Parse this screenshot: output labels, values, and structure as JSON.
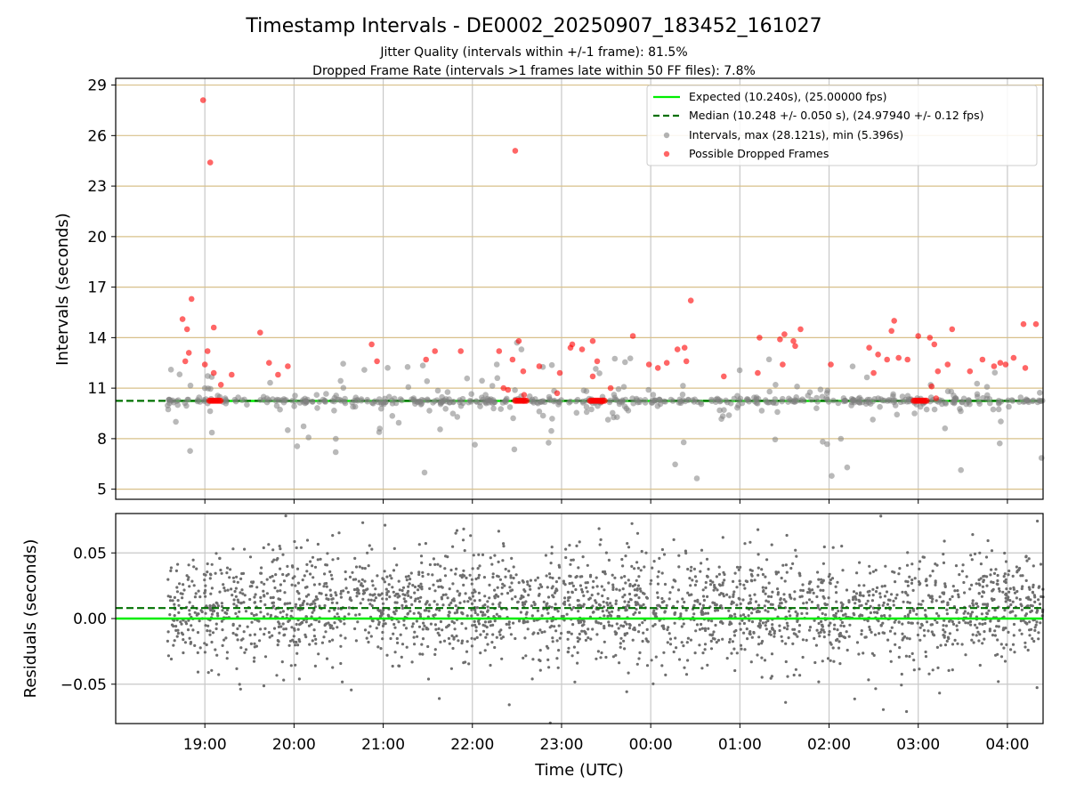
{
  "header": {
    "title": "Timestamp Intervals - DE0002_20250907_183452_161027",
    "subtitle_1": "Jitter Quality (intervals within +/-1 frame): 81.5%",
    "subtitle_2": "Dropped Frame Rate (intervals >1 frames late within 50 FF files): 7.8%"
  },
  "chart_data": [
    {
      "type": "scatter",
      "name": "intervals",
      "ylabel": "Intervals (seconds)",
      "ylim": [
        4.4,
        29.4
      ],
      "yticks": [
        5,
        8,
        11,
        14,
        17,
        20,
        23,
        26,
        29
      ],
      "ytick_labels": [
        "5",
        "8",
        "11",
        "14",
        "17",
        "20",
        "23",
        "26",
        "29"
      ],
      "xlim_hours": [
        18.0,
        28.4
      ],
      "grid": "both",
      "expected_value": 10.24,
      "median_value": 10.248,
      "legend": {
        "position": "top-right",
        "entries": [
          {
            "label": "Expected (10.240s), (25.00000 fps)",
            "style": "line",
            "color": "#00ee00"
          },
          {
            "label": "Median (10.248 +/- 0.050 s), (24.97940 +/- 0.12 fps)",
            "style": "dashed",
            "color": "#007000"
          },
          {
            "label": "Intervals, max (28.121s), min (5.396s)",
            "style": "dot",
            "color": "#808080"
          },
          {
            "label": "Possible Dropped Frames",
            "style": "dot",
            "color": "#ff0000"
          }
        ]
      },
      "series": [
        {
          "name": "Possible Dropped Frames",
          "color": "#ff0000",
          "points": [
            [
              18.98,
              28.1
            ],
            [
              19.06,
              24.4
            ],
            [
              18.85,
              16.3
            ],
            [
              18.75,
              15.1
            ],
            [
              18.8,
              14.5
            ],
            [
              19.1,
              14.6
            ],
            [
              19.62,
              14.3
            ],
            [
              18.78,
              12.6
            ],
            [
              18.82,
              13.1
            ],
            [
              19.03,
              13.2
            ],
            [
              19.0,
              12.4
            ],
            [
              19.1,
              11.9
            ],
            [
              19.3,
              11.8
            ],
            [
              19.72,
              12.5
            ],
            [
              19.93,
              12.3
            ],
            [
              19.82,
              11.8
            ],
            [
              20.87,
              13.6
            ],
            [
              20.93,
              12.6
            ],
            [
              21.48,
              12.7
            ],
            [
              21.58,
              13.2
            ],
            [
              21.87,
              13.2
            ],
            [
              22.48,
              25.1
            ],
            [
              22.3,
              13.2
            ],
            [
              22.45,
              12.7
            ],
            [
              22.52,
              13.8
            ],
            [
              22.57,
              12.0
            ],
            [
              22.75,
              12.3
            ],
            [
              22.35,
              11.0
            ],
            [
              22.4,
              10.9
            ],
            [
              22.58,
              10.6
            ],
            [
              22.98,
              11.9
            ],
            [
              23.1,
              13.4
            ],
            [
              23.12,
              13.6
            ],
            [
              23.23,
              13.3
            ],
            [
              23.35,
              13.8
            ],
            [
              23.4,
              12.6
            ],
            [
              23.35,
              11.7
            ],
            [
              23.55,
              11.0
            ],
            [
              23.8,
              14.1
            ],
            [
              23.98,
              12.4
            ],
            [
              24.08,
              12.2
            ],
            [
              24.18,
              12.5
            ],
            [
              24.3,
              13.3
            ],
            [
              24.38,
              13.4
            ],
            [
              24.4,
              12.6
            ],
            [
              24.45,
              16.2
            ],
            [
              24.82,
              11.7
            ],
            [
              25.22,
              14.0
            ],
            [
              25.2,
              11.9
            ],
            [
              25.45,
              13.9
            ],
            [
              25.5,
              14.2
            ],
            [
              25.6,
              13.8
            ],
            [
              25.62,
              13.5
            ],
            [
              25.68,
              14.5
            ],
            [
              25.48,
              12.4
            ],
            [
              26.02,
              12.4
            ],
            [
              26.45,
              13.4
            ],
            [
              26.5,
              11.9
            ],
            [
              26.55,
              13.0
            ],
            [
              26.65,
              12.7
            ],
            [
              26.7,
              14.4
            ],
            [
              26.73,
              15.0
            ],
            [
              26.78,
              12.8
            ],
            [
              26.88,
              12.7
            ],
            [
              27.0,
              14.1
            ],
            [
              27.13,
              14.0
            ],
            [
              27.18,
              13.6
            ],
            [
              27.22,
              12.0
            ],
            [
              27.33,
              12.4
            ],
            [
              27.38,
              14.5
            ],
            [
              27.58,
              12.0
            ],
            [
              27.72,
              12.7
            ],
            [
              27.85,
              12.3
            ],
            [
              27.92,
              12.5
            ],
            [
              27.98,
              12.4
            ],
            [
              28.07,
              12.8
            ],
            [
              28.2,
              12.2
            ],
            [
              28.18,
              14.8
            ],
            [
              28.32,
              14.8
            ],
            [
              27.15,
              11.1
            ],
            [
              27.2,
              10.4
            ],
            [
              23.45,
              10.2
            ],
            [
              19.18,
              11.2
            ],
            [
              22.95,
              10.7
            ]
          ]
        }
      ]
    },
    {
      "type": "scatter",
      "name": "residuals",
      "xlabel": "Time (UTC)",
      "ylabel": "Residuals (seconds)",
      "ylim": [
        -0.08,
        0.08
      ],
      "yticks": [
        -0.05,
        0.0,
        0.05
      ],
      "ytick_labels": [
        "−0.05",
        "0.00",
        "0.05"
      ],
      "xlim_hours": [
        18.0,
        28.4
      ],
      "xticks_hours": [
        19,
        20,
        21,
        22,
        23,
        24,
        25,
        26,
        27,
        28
      ],
      "xtick_labels": [
        "19:00",
        "20:00",
        "21:00",
        "22:00",
        "23:00",
        "00:00",
        "01:00",
        "02:00",
        "03:00",
        "04:00"
      ],
      "grid": "both",
      "expected_residual": 0.0,
      "median_residual": 0.008,
      "residual_spread_sd": 0.021
    }
  ],
  "colors": {
    "expected": "#00ee00",
    "median": "#007000",
    "intervals": "#808080",
    "dropped": "#ff0000",
    "gridline": "#d8c08a"
  }
}
